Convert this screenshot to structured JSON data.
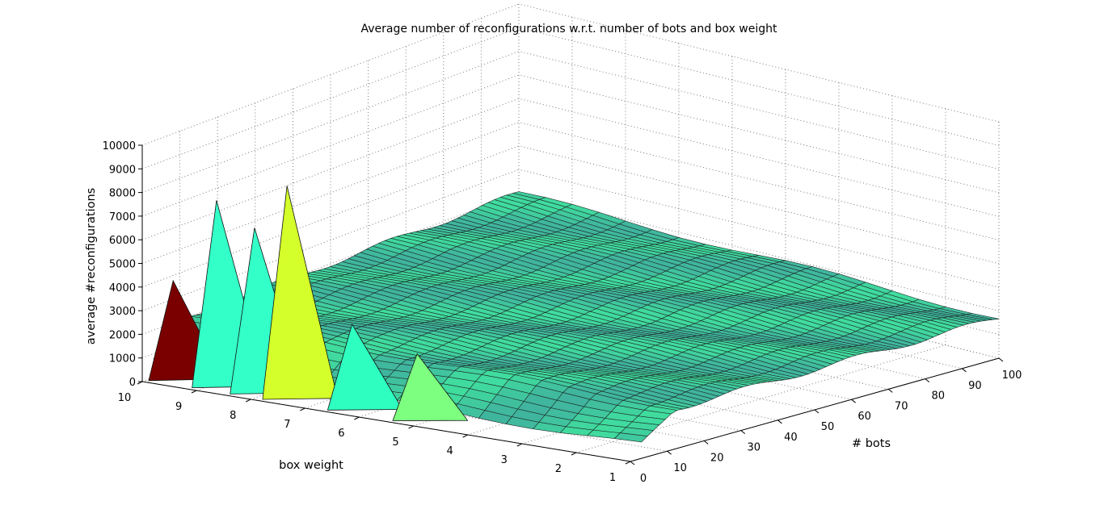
{
  "chart_data": {
    "type": "surface3d",
    "title": "Average number of reconfigurations w.r.t. number of bots and box weight",
    "xlabel": "# bots",
    "ylabel": "box weight",
    "zlabel": "average #reconfigurations",
    "xlim": [
      0,
      100
    ],
    "ylim": [
      1,
      10
    ],
    "zlim": [
      0,
      10000
    ],
    "x_ticks": [
      "0",
      "10",
      "20",
      "30",
      "40",
      "50",
      "60",
      "70",
      "80",
      "90",
      "100"
    ],
    "y_ticks": [
      "1",
      "2",
      "3",
      "4",
      "5",
      "6",
      "7",
      "8",
      "9",
      "10"
    ],
    "z_ticks": [
      "0",
      "1000",
      "2000",
      "3000",
      "4000",
      "5000",
      "6000",
      "7000",
      "8000",
      "9000",
      "10000"
    ],
    "grid": true,
    "colormap": "jet",
    "baseline_level": 2000,
    "peaks": [
      {
        "bots": 1,
        "weight": 9.5,
        "value": 4400,
        "color": "#7a0000"
      },
      {
        "bots": 1,
        "weight": 8.7,
        "value": 8100,
        "color": "#33ffc8"
      },
      {
        "bots": 1,
        "weight": 8.0,
        "value": 7200,
        "color": "#33ffc8"
      },
      {
        "bots": 1,
        "weight": 7.4,
        "value": 9200,
        "color": "#d4ff2a"
      },
      {
        "bots": 1,
        "weight": 6.2,
        "value": 3800,
        "color": "#2effc0"
      },
      {
        "bots": 1,
        "weight": 5.0,
        "value": 3000,
        "color": "#7dff80"
      }
    ]
  }
}
